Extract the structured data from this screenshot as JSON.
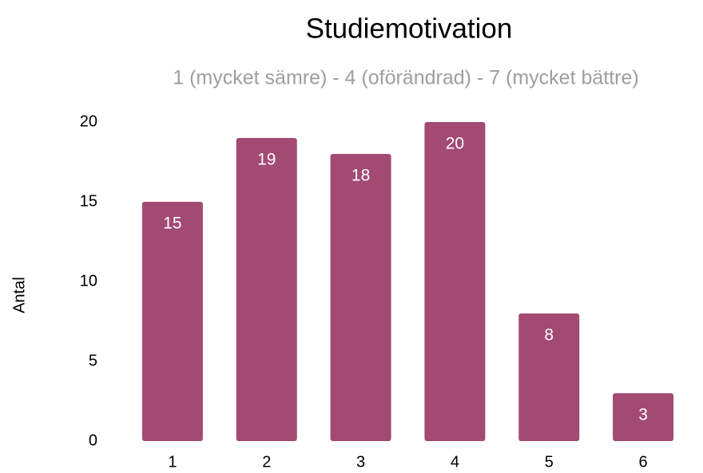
{
  "chart_data": {
    "type": "bar",
    "title": "Studiemotivation",
    "subtitle": "1 (mycket sämre) - 4 (oförändrad) - 7 (mycket bättre)",
    "ylabel": "Antal",
    "categories": [
      "1",
      "2",
      "3",
      "4",
      "5",
      "6"
    ],
    "values": [
      15,
      19,
      18,
      20,
      8,
      3
    ],
    "color": "#a34a73",
    "ylim": [
      0,
      20
    ],
    "yticks": [
      0,
      5,
      10,
      15,
      20
    ],
    "grid": false
  }
}
